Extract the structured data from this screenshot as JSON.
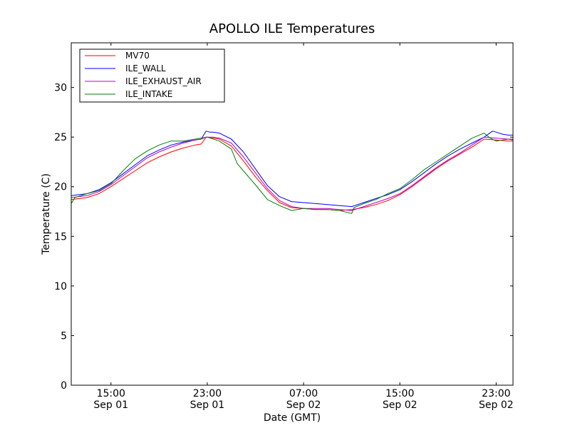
{
  "chart_data": {
    "type": "line",
    "title": "APOLLO ILE Temperatures",
    "xlabel": "Date (GMT)",
    "ylabel": "Temperature (C)",
    "ylim": [
      0,
      34.5
    ],
    "xlim": [
      11.7,
      48.4
    ],
    "x_unit": "hours since Sep 01 00:00 GMT",
    "yticks": [
      0,
      5,
      10,
      15,
      20,
      25,
      30
    ],
    "xticks": [
      {
        "value": 15,
        "line1": "15:00",
        "line2": "Sep 01"
      },
      {
        "value": 23,
        "line1": "23:00",
        "line2": "Sep 01"
      },
      {
        "value": 31,
        "line1": "07:00",
        "line2": "Sep 02"
      },
      {
        "value": 39,
        "line1": "15:00",
        "line2": "Sep 02"
      },
      {
        "value": 47,
        "line1": "23:00",
        "line2": "Sep 02"
      }
    ],
    "legend_position": "top-left",
    "series": [
      {
        "name": "MV70",
        "color": "#ff0000",
        "x": [
          11.7,
          13,
          14,
          15,
          16,
          17,
          18,
          19,
          20,
          21,
          22,
          22.5,
          22.9,
          23.5,
          24,
          25,
          26,
          27,
          28,
          29,
          30,
          31,
          32,
          33,
          34,
          35,
          36,
          37,
          38,
          39,
          40,
          41,
          42,
          43,
          44,
          45,
          46,
          47,
          48,
          48.4
        ],
        "y": [
          18.7,
          18.9,
          19.3,
          20.0,
          20.8,
          21.6,
          22.4,
          23.0,
          23.5,
          23.9,
          24.2,
          24.3,
          25.0,
          24.9,
          24.8,
          24.1,
          22.6,
          21.0,
          19.6,
          18.4,
          17.9,
          17.8,
          17.7,
          17.7,
          17.6,
          17.7,
          17.9,
          18.2,
          18.6,
          19.2,
          20.0,
          20.9,
          21.8,
          22.6,
          23.3,
          24.0,
          24.8,
          24.7,
          24.6,
          24.6
        ]
      },
      {
        "name": "ILE_WALL",
        "color": "#0000ff",
        "x": [
          11.7,
          13,
          14,
          15,
          16,
          17,
          18,
          19,
          20,
          21,
          22,
          22.5,
          22.9,
          23.2,
          23.5,
          24,
          25,
          26,
          27,
          28,
          29,
          30,
          31,
          32,
          33,
          34,
          35,
          36,
          37,
          38,
          39,
          40,
          41,
          42,
          43,
          44,
          45,
          46,
          46.7,
          47,
          47.5,
          48,
          48.4
        ],
        "y": [
          19.1,
          19.3,
          19.7,
          20.4,
          21.3,
          22.2,
          23.1,
          23.7,
          24.2,
          24.5,
          24.7,
          24.8,
          25.6,
          25.5,
          25.5,
          25.4,
          24.8,
          23.5,
          21.8,
          20.1,
          19.0,
          18.5,
          18.4,
          18.3,
          18.2,
          18.1,
          18.0,
          18.4,
          18.8,
          19.2,
          19.7,
          20.5,
          21.4,
          22.3,
          23.1,
          23.8,
          24.4,
          25.0,
          25.6,
          25.5,
          25.3,
          25.2,
          25.2
        ]
      },
      {
        "name": "ILE_EXHAUST_AIR",
        "color": "#bf00bf",
        "x": [
          11.7,
          13,
          14,
          15,
          16,
          17,
          18,
          19,
          20,
          21,
          22,
          22.5,
          22.9,
          23.5,
          24,
          25,
          26,
          27,
          28,
          29,
          30,
          31,
          32,
          33,
          34,
          35,
          36,
          37,
          38,
          39,
          40,
          41,
          42,
          43,
          44,
          45,
          46,
          47,
          48,
          48.4
        ],
        "y": [
          18.9,
          19.1,
          19.5,
          20.2,
          21.1,
          22.0,
          22.9,
          23.5,
          24.0,
          24.4,
          24.7,
          24.8,
          25.0,
          25.0,
          24.9,
          24.4,
          23.0,
          21.4,
          19.8,
          18.6,
          18.0,
          17.8,
          17.8,
          17.8,
          17.7,
          17.6,
          18.0,
          18.4,
          18.8,
          19.3,
          20.1,
          21.0,
          21.9,
          22.7,
          23.4,
          24.2,
          25.0,
          24.9,
          24.8,
          24.8
        ]
      },
      {
        "name": "ILE_INTAKE",
        "color": "#008000",
        "x": [
          11.7,
          12,
          13,
          14,
          15,
          16,
          17,
          18,
          19,
          20,
          21,
          22,
          23,
          24,
          25,
          25.5,
          26,
          27,
          28,
          29,
          30,
          31,
          32,
          33,
          34,
          35,
          35.2,
          36,
          37,
          38,
          39,
          40,
          41,
          42,
          43,
          44,
          45,
          46,
          46.5,
          47,
          48,
          48.4
        ],
        "y": [
          18.3,
          18.9,
          19.3,
          19.6,
          20.3,
          21.6,
          22.8,
          23.6,
          24.2,
          24.6,
          24.6,
          24.8,
          25.0,
          24.6,
          23.8,
          22.3,
          21.6,
          20.2,
          18.7,
          18.1,
          17.6,
          17.8,
          17.7,
          17.7,
          17.6,
          17.3,
          17.9,
          18.3,
          18.7,
          19.3,
          19.8,
          20.7,
          21.7,
          22.5,
          23.3,
          24.1,
          24.9,
          25.4,
          24.9,
          24.6,
          24.8,
          24.7
        ]
      }
    ]
  }
}
